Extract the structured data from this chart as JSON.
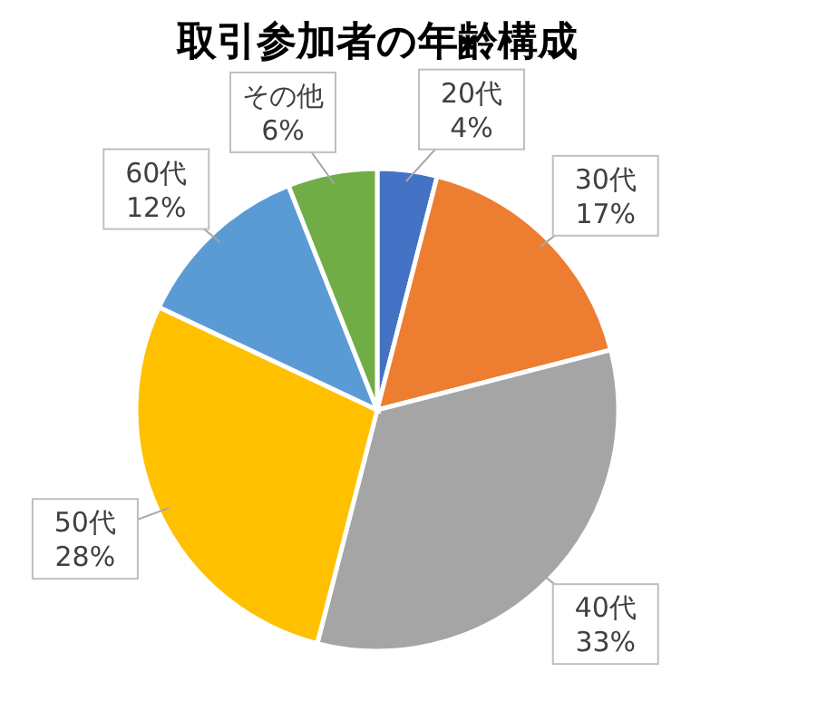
{
  "chart_data": {
    "type": "pie",
    "title": "取引参加者の年齢構成",
    "categories": [
      "20代",
      "30代",
      "40代",
      "50代",
      "60代",
      "その他"
    ],
    "values": [
      4,
      17,
      33,
      28,
      12,
      6
    ],
    "value_labels": [
      "4%",
      "17%",
      "33%",
      "28%",
      "12%",
      "6%"
    ],
    "colors": [
      "#4472c4",
      "#ed7d31",
      "#a5a5a5",
      "#ffc000",
      "#5b9bd5",
      "#70ad47"
    ]
  }
}
